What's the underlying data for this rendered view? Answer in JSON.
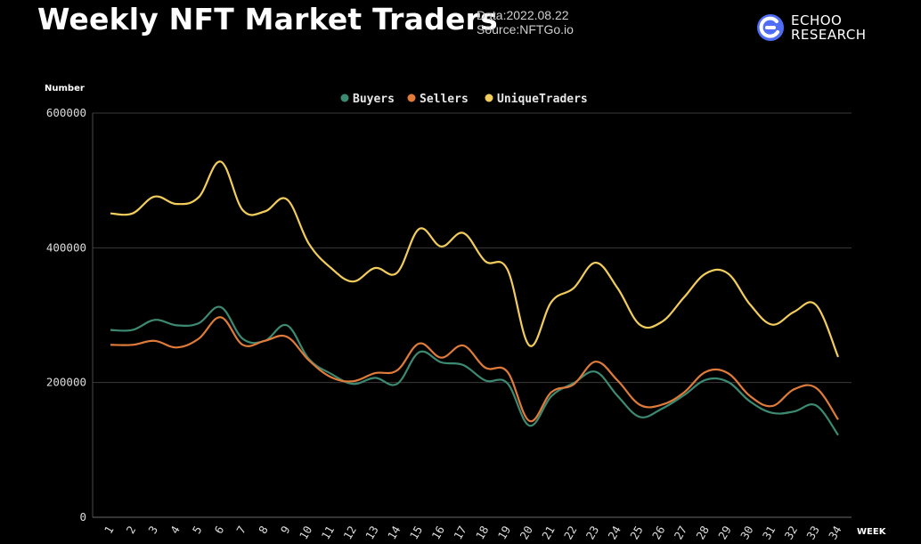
{
  "header": {
    "title": "Weekly NFT Market Traders",
    "date": "Data:2022.08.22",
    "source": "Source:NFTGo.io"
  },
  "logo": {
    "line1": "ECHOO",
    "line2": "RESEARCH",
    "icon": "echoo-logo-icon",
    "color": "#4f6df5"
  },
  "chart_data": {
    "type": "line",
    "title": "",
    "xlabel": "WEEK",
    "ylabel": "Number",
    "ylim": [
      0,
      600000
    ],
    "yticks": [
      0,
      200000,
      400000,
      600000
    ],
    "grid": true,
    "legend_position": "top-center",
    "x": [
      1,
      2,
      3,
      4,
      5,
      6,
      7,
      8,
      9,
      10,
      11,
      12,
      13,
      14,
      15,
      16,
      17,
      18,
      19,
      20,
      21,
      22,
      23,
      24,
      25,
      26,
      27,
      28,
      29,
      30,
      31,
      32,
      33,
      34
    ],
    "series": [
      {
        "name": "Buyers",
        "color": "#3d8a73",
        "values": [
          278000,
          278000,
          293000,
          285000,
          288000,
          312000,
          265000,
          262000,
          285000,
          235000,
          213000,
          198000,
          207000,
          198000,
          245000,
          230000,
          226000,
          203000,
          199000,
          136000,
          180000,
          199000,
          216000,
          180000,
          149000,
          161000,
          181000,
          204000,
          201000,
          172000,
          155000,
          157000,
          166000,
          122000
        ]
      },
      {
        "name": "Sellers",
        "color": "#e07b39",
        "values": [
          256000,
          256000,
          262000,
          252000,
          265000,
          297000,
          256000,
          262000,
          268000,
          233000,
          208000,
          202000,
          214000,
          218000,
          258000,
          237000,
          255000,
          222000,
          216000,
          143000,
          186000,
          197000,
          231000,
          203000,
          167000,
          167000,
          185000,
          216000,
          214000,
          180000,
          165000,
          190000,
          192000,
          145000
        ]
      },
      {
        "name": "UniqueTraders",
        "color": "#f2cd5c",
        "values": [
          451000,
          451000,
          476000,
          465000,
          475000,
          528000,
          456000,
          454000,
          472000,
          406000,
          370000,
          350000,
          370000,
          363000,
          428000,
          402000,
          422000,
          380000,
          368000,
          255000,
          320000,
          340000,
          378000,
          340000,
          286000,
          290000,
          326000,
          362000,
          362000,
          316000,
          286000,
          305000,
          315000,
          238000
        ]
      }
    ]
  }
}
